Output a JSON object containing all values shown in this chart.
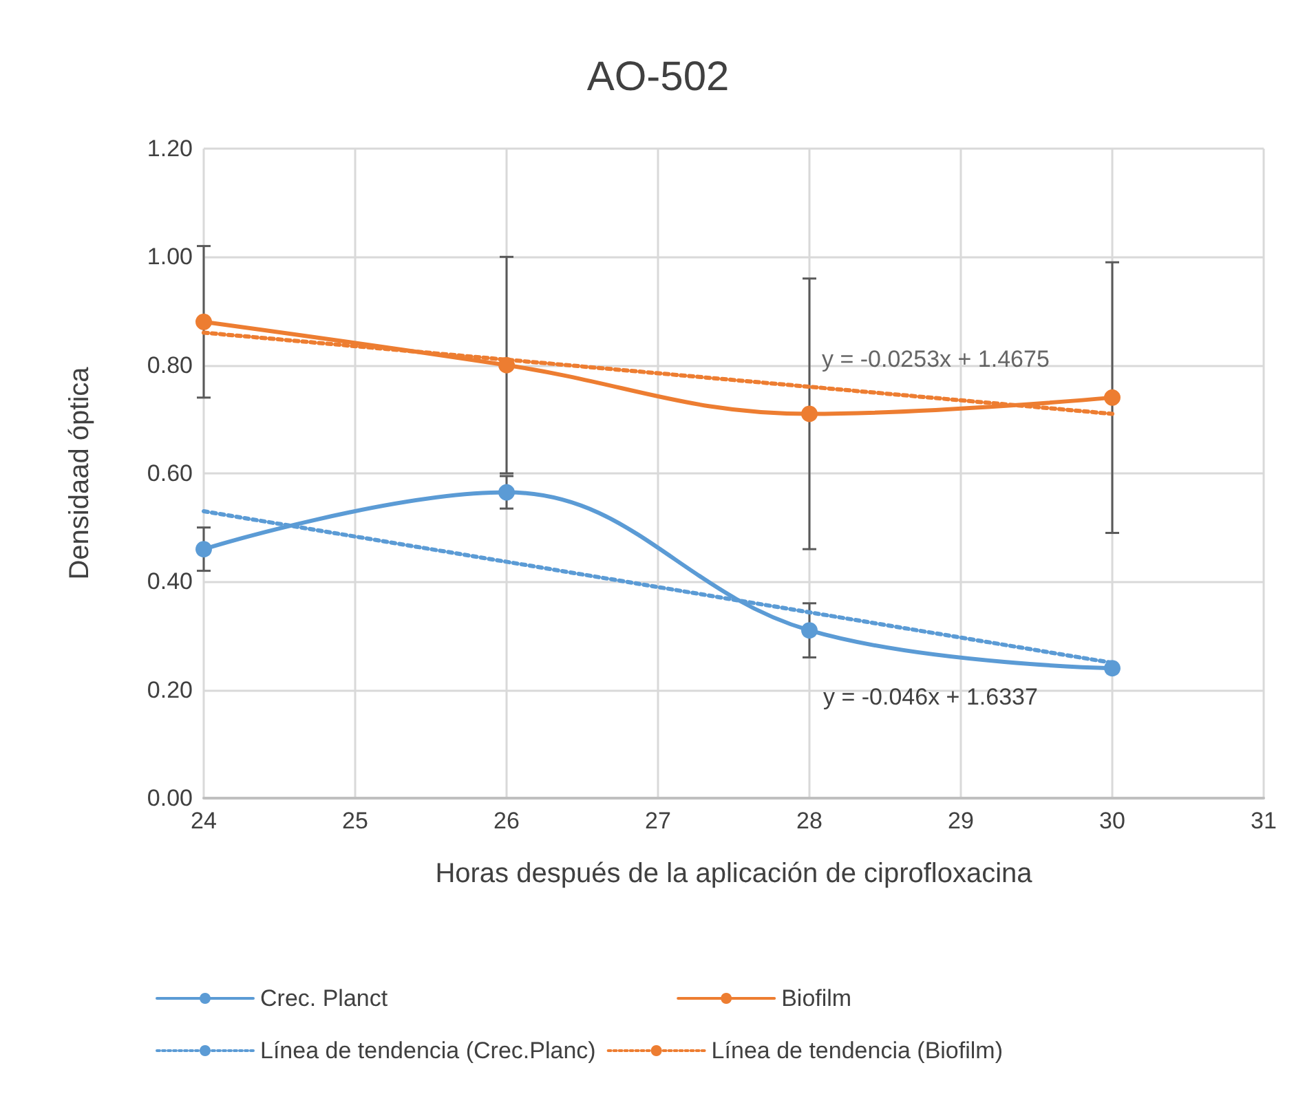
{
  "chart_data": {
    "type": "line",
    "title": "AO-502",
    "xlabel": "Horas después de la aplicación de ciprofloxacina",
    "ylabel": "Densidaad óptica",
    "xlim": [
      24,
      31
    ],
    "xticks": [
      24,
      25,
      26,
      27,
      28,
      29,
      30,
      31
    ],
    "ylim": [
      0,
      1.2
    ],
    "yticks": [
      {
        "value": 0,
        "label": "0.00"
      },
      {
        "value": 0.2,
        "label": "0.20"
      },
      {
        "value": 0.4,
        "label": "0.40"
      },
      {
        "value": 0.6,
        "label": "0.60"
      },
      {
        "value": 0.8,
        "label": "0.80"
      },
      {
        "value": 1,
        "label": "1.00"
      },
      {
        "value": 1.2,
        "label": "1.20"
      }
    ],
    "grid": true,
    "legend": "bottom",
    "series": [
      {
        "name": "Crec. Planct",
        "color": "#5b9bd5",
        "x": [
          24,
          26,
          28,
          30
        ],
        "values": [
          0.46,
          0.565,
          0.31,
          0.24
        ],
        "errors": [
          0.04,
          0.03,
          0.05,
          null
        ],
        "marker": "circle",
        "line_style": "solid"
      },
      {
        "name": "Biofilm",
        "color": "#ed7d31",
        "x": [
          24,
          26,
          28,
          30
        ],
        "values": [
          0.88,
          0.8,
          0.71,
          0.74
        ],
        "errors": [
          0.14,
          0.2,
          0.25,
          0.25
        ],
        "marker": "circle",
        "line_style": "solid"
      },
      {
        "name": "Línea de tendencia (Crec.Planc)",
        "color": "#5b9bd5",
        "x": [
          24,
          30
        ],
        "values": [
          0.53,
          0.25
        ],
        "marker": "none",
        "line_style": "dotted"
      },
      {
        "name": "Línea de tendencia (Biofilm)",
        "color": "#ed7d31",
        "x": [
          24,
          30
        ],
        "values": [
          0.86,
          0.71
        ],
        "marker": "none",
        "line_style": "dotted"
      }
    ],
    "annotations": [
      {
        "text": "y = -0.0253x + 1.4675",
        "x": 28,
        "y": 0.76
      },
      "y = -0.046x + 1.6337"
    ]
  }
}
